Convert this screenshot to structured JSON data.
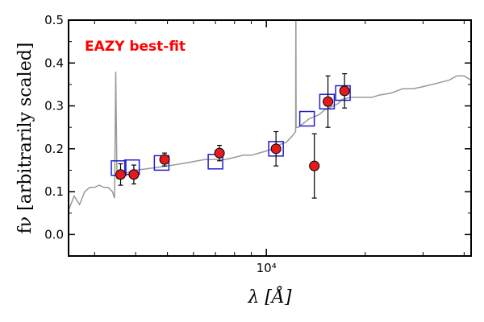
{
  "chart_data": {
    "type": "scatter",
    "title": "",
    "annotation": "EAZY best-fit",
    "annotation_color": "#ff0000",
    "xlabel": "λ [Å]",
    "ylabel": "fν [arbitrarily scaled]",
    "x_scale": "log",
    "xlim": [
      2500,
      42000
    ],
    "ylim": [
      -0.05,
      0.5
    ],
    "y_ticks": [
      0.0,
      0.1,
      0.2,
      0.3,
      0.4,
      0.5
    ],
    "y_tick_labels": [
      "0.0",
      "0.1",
      "0.2",
      "0.3",
      "0.4",
      "0.5"
    ],
    "x_tick_label": "10⁴",
    "grid": false,
    "colors": {
      "template": "#999999",
      "model_marker_edge": "#1f1fd0",
      "observed_fill": "#e41a1c",
      "observed_edge": "#000000",
      "errorbar": "#000000"
    },
    "series": [
      {
        "role": "template-spectrum",
        "x": [
          2510,
          2600,
          2700,
          2800,
          2900,
          3000,
          3100,
          3200,
          3300,
          3400,
          3450,
          3480,
          3510,
          3540,
          3600,
          3800,
          4000,
          4500,
          5000,
          5500,
          6000,
          6500,
          7000,
          7500,
          8000,
          8500,
          9000,
          9500,
          10000,
          10500,
          11000,
          11500,
          12000,
          12280,
          12300,
          12320,
          12500,
          13000,
          13500,
          14000,
          14500,
          15000,
          15500,
          16000,
          16500,
          17000,
          18000,
          19000,
          20000,
          21000,
          22000,
          24000,
          26000,
          28000,
          30000,
          32000,
          34000,
          36000,
          38000,
          40000,
          42000
        ],
        "values": [
          0.06,
          0.09,
          0.07,
          0.1,
          0.11,
          0.11,
          0.115,
          0.11,
          0.11,
          0.1,
          0.085,
          0.38,
          0.13,
          0.13,
          0.14,
          0.145,
          0.15,
          0.155,
          0.16,
          0.165,
          0.17,
          0.175,
          0.175,
          0.175,
          0.18,
          0.185,
          0.185,
          0.19,
          0.195,
          0.2,
          0.21,
          0.215,
          0.23,
          0.24,
          0.52,
          0.25,
          0.25,
          0.26,
          0.27,
          0.275,
          0.28,
          0.29,
          0.295,
          0.3,
          0.305,
          0.315,
          0.32,
          0.32,
          0.32,
          0.32,
          0.325,
          0.33,
          0.34,
          0.34,
          0.345,
          0.35,
          0.355,
          0.36,
          0.37,
          0.37,
          0.36
        ]
      },
      {
        "role": "model-photometry",
        "marker": "square",
        "x": [
          3550,
          3900,
          4800,
          7000,
          10700,
          13300,
          15300,
          17100
        ],
        "values": [
          0.155,
          0.157,
          0.167,
          0.17,
          0.2,
          0.27,
          0.31,
          0.33
        ]
      },
      {
        "role": "observed-photometry",
        "marker": "circle",
        "x": [
          3600,
          3950,
          4900,
          7200,
          10700,
          14000,
          15400,
          17300
        ],
        "values": [
          0.14,
          0.14,
          0.175,
          0.19,
          0.2,
          0.16,
          0.31,
          0.335
        ],
        "errors": [
          0.025,
          0.022,
          0.015,
          0.018,
          0.04,
          0.075,
          0.06,
          0.04
        ]
      }
    ]
  }
}
